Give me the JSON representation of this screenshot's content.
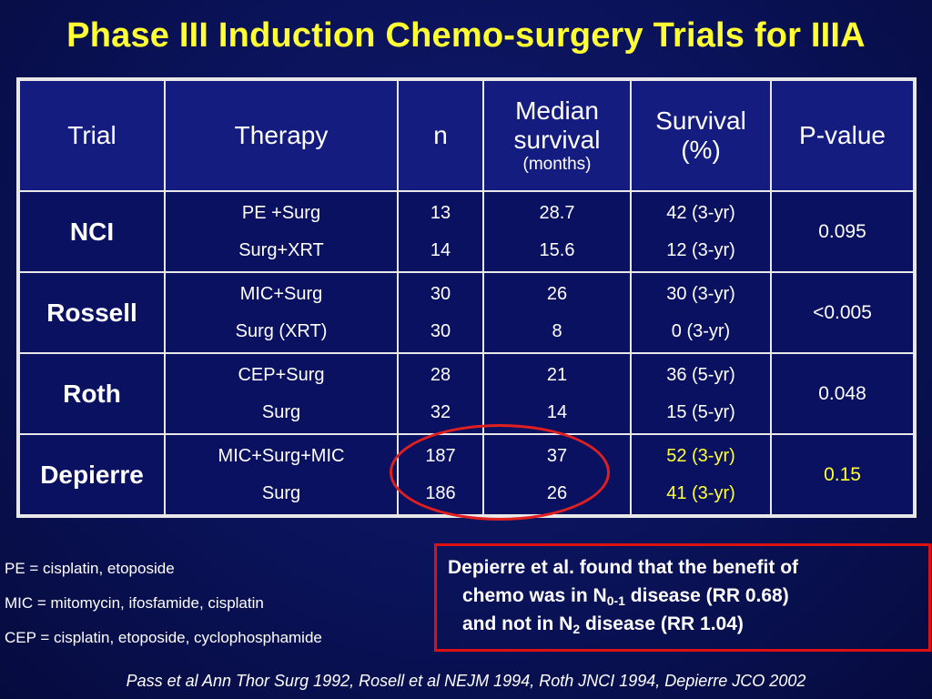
{
  "title": "Phase III Induction Chemo-surgery Trials for IIIA",
  "table": {
    "headers": {
      "trial": "Trial",
      "therapy": "Therapy",
      "n": "n",
      "median_line1": "Median",
      "median_line2": "survival",
      "median_unit": "(months)",
      "survival_line1": "Survival",
      "survival_line2": "(%)",
      "pvalue": "P-value"
    },
    "rows": [
      {
        "trial": "NCI",
        "therapy": [
          "PE +Surg",
          "Surg+XRT"
        ],
        "n": [
          "13",
          "14"
        ],
        "median": [
          "28.7",
          "15.6"
        ],
        "survival": [
          "42 (3-yr)",
          "12 (3-yr)"
        ],
        "pvalue": "0.095"
      },
      {
        "trial": "Rossell",
        "therapy": [
          "MIC+Surg",
          "Surg (XRT)"
        ],
        "n": [
          "30",
          "30"
        ],
        "median": [
          "26",
          "8"
        ],
        "survival": [
          "30 (3-yr)",
          "0 (3-yr)"
        ],
        "pvalue": "<0.005"
      },
      {
        "trial": "Roth",
        "therapy": [
          "CEP+Surg",
          "Surg"
        ],
        "n": [
          "28",
          "32"
        ],
        "median": [
          "21",
          "14"
        ],
        "survival": [
          "36 (5-yr)",
          "15 (5-yr)"
        ],
        "pvalue": "0.048"
      },
      {
        "trial": "Depierre",
        "therapy": [
          "MIC+Surg+MIC",
          "Surg"
        ],
        "n": [
          "187",
          "186"
        ],
        "median": [
          "37",
          "26"
        ],
        "survival": [
          "52 (3-yr)",
          "41 (3-yr)"
        ],
        "pvalue": "0.15"
      }
    ]
  },
  "legend": [
    "PE = cisplatin, etoposide",
    "MIC = mitomycin, ifosfamide, cisplatin",
    "CEP = cisplatin, etoposide, cyclophosphamide"
  ],
  "callout": {
    "line1": "Depierre et al. found that the benefit of",
    "line2_pre": "chemo was in N",
    "line2_sub": "0-1",
    "line2_post": " disease (RR 0.68)",
    "line3_pre": "and not in N",
    "line3_sub": "2",
    "line3_post": " disease (RR 1.04)"
  },
  "footer": "Pass et al Ann Thor Surg 1992, Rosell et al NEJM 1994, Roth JNCI 1994, Depierre JCO 2002",
  "colors": {
    "title": "#ffff33",
    "highlight": "#ffff33",
    "circle": "#e02020",
    "callout_border": "#dd1111",
    "background": "#0a1258"
  }
}
